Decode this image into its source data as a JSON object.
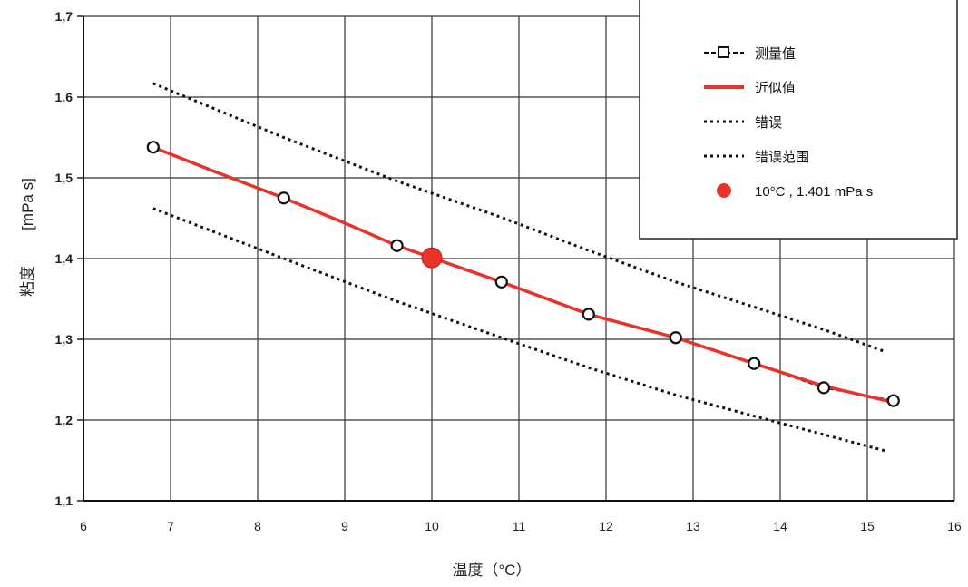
{
  "chart_data": {
    "type": "line",
    "xlabel": "温度（°C）",
    "ylabel_main": "粘度",
    "ylabel_unit": "[mPa s]",
    "xlim": [
      6,
      16
    ],
    "ylim": [
      1.1,
      1.7
    ],
    "x_ticks": [
      "6",
      "7",
      "8",
      "9",
      "10",
      "11",
      "12",
      "13",
      "14",
      "15",
      "16"
    ],
    "y_ticks": [
      "1,1",
      "1,2",
      "1,3",
      "1,4",
      "1,5",
      "1,6",
      "1,7"
    ],
    "grid": true,
    "legend_position": "top-right",
    "series": [
      {
        "name": "测量值",
        "style": "dashed-with-circle-markers",
        "color": "#111111",
        "x": [
          6.8,
          8.3,
          9.6,
          10.8,
          11.8,
          12.8,
          13.7,
          14.5,
          15.3
        ],
        "y": [
          1.538,
          1.475,
          1.416,
          1.371,
          1.331,
          1.302,
          1.27,
          1.24,
          1.224
        ]
      },
      {
        "name": "近似值",
        "style": "solid",
        "color": "#e8322a",
        "x": [
          6.8,
          7.5,
          8.3,
          9.0,
          9.6,
          10.0,
          10.8,
          11.8,
          12.8,
          13.7,
          14.5,
          15.3
        ],
        "y": [
          1.538,
          1.508,
          1.475,
          1.444,
          1.416,
          1.401,
          1.371,
          1.331,
          1.302,
          1.27,
          1.242,
          1.222
        ]
      },
      {
        "name": "错误",
        "style": "dotted",
        "color": "#111111",
        "x": [
          6.8,
          8.3,
          9.6,
          10.8,
          11.8,
          12.8,
          13.7,
          14.5,
          15.2
        ],
        "y": [
          1.617,
          1.55,
          1.496,
          1.451,
          1.41,
          1.371,
          1.34,
          1.312,
          1.285
        ]
      },
      {
        "name": "错误范围",
        "style": "dotted",
        "color": "#111111",
        "x": [
          6.8,
          8.3,
          9.6,
          10.8,
          11.8,
          12.8,
          13.7,
          14.5,
          15.2
        ],
        "y": [
          1.462,
          1.4,
          1.347,
          1.302,
          1.265,
          1.231,
          1.205,
          1.182,
          1.162
        ]
      }
    ],
    "highlight_point": {
      "label": "10°C , 1.401 mPa s",
      "x": 10,
      "y": 1.401,
      "color": "#e8322a"
    }
  }
}
